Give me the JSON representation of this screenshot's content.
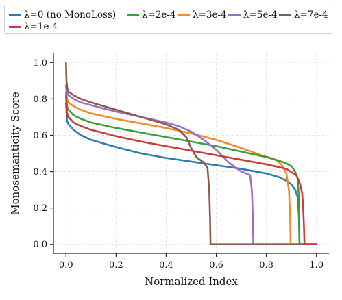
{
  "chart_data": {
    "type": "line",
    "title": "",
    "xlabel": "Normalized Index",
    "ylabel": "Monosemanticity Score",
    "xlim": [
      -0.05,
      1.05
    ],
    "ylim": [
      -0.05,
      1.05
    ],
    "xticks": [
      "0.0",
      "0.2",
      "0.4",
      "0.6",
      "0.8",
      "1.0"
    ],
    "yticks": [
      "0.0",
      "0.2",
      "0.4",
      "0.6",
      "0.8",
      "1.0"
    ],
    "grid": true,
    "legend_position": "top",
    "series": [
      {
        "name": "λ=0 (no MonoLoss)",
        "color": "#2e7bb4",
        "x": [
          0,
          0.004,
          0.01,
          0.03,
          0.06,
          0.1,
          0.2,
          0.3,
          0.4,
          0.5,
          0.6,
          0.7,
          0.8,
          0.85,
          0.88,
          0.9,
          0.915,
          0.925,
          0.93,
          0.932,
          1.0
        ],
        "y": [
          0.78,
          0.68,
          0.66,
          0.63,
          0.6,
          0.575,
          0.535,
          0.5,
          0.475,
          0.455,
          0.435,
          0.415,
          0.39,
          0.37,
          0.35,
          0.33,
          0.3,
          0.26,
          0.15,
          0.0,
          0.0
        ]
      },
      {
        "name": "λ=2e-4",
        "color": "#3a9e3a",
        "x": [
          0,
          0.004,
          0.01,
          0.03,
          0.06,
          0.1,
          0.2,
          0.3,
          0.4,
          0.5,
          0.6,
          0.7,
          0.8,
          0.85,
          0.88,
          0.9,
          0.915,
          0.925,
          0.93,
          0.932,
          1.0
        ],
        "y": [
          0.84,
          0.76,
          0.74,
          0.71,
          0.69,
          0.67,
          0.64,
          0.615,
          0.59,
          0.565,
          0.54,
          0.51,
          0.48,
          0.46,
          0.445,
          0.43,
          0.4,
          0.36,
          0.25,
          0.0,
          0.0
        ]
      },
      {
        "name": "λ=3e-4",
        "color": "#f08a2a",
        "x": [
          0,
          0.004,
          0.01,
          0.03,
          0.06,
          0.1,
          0.2,
          0.3,
          0.4,
          0.5,
          0.6,
          0.7,
          0.78,
          0.83,
          0.86,
          0.88,
          0.89,
          0.895,
          0.897,
          1.0
        ],
        "y": [
          0.87,
          0.8,
          0.78,
          0.76,
          0.74,
          0.72,
          0.69,
          0.665,
          0.64,
          0.61,
          0.575,
          0.53,
          0.49,
          0.47,
          0.44,
          0.39,
          0.3,
          0.15,
          0.0,
          0.0
        ]
      },
      {
        "name": "λ=5e-4",
        "color": "#9e6dc9",
        "x": [
          0,
          0.004,
          0.01,
          0.03,
          0.06,
          0.1,
          0.2,
          0.3,
          0.4,
          0.45,
          0.5,
          0.55,
          0.6,
          0.65,
          0.7,
          0.72,
          0.735,
          0.742,
          0.746,
          0.748,
          1.0
        ],
        "y": [
          0.88,
          0.84,
          0.82,
          0.8,
          0.78,
          0.765,
          0.73,
          0.7,
          0.67,
          0.65,
          0.62,
          0.575,
          0.52,
          0.45,
          0.4,
          0.39,
          0.38,
          0.3,
          0.15,
          0.0,
          0.0
        ]
      },
      {
        "name": "λ=7e-4",
        "color": "#8b5a4a",
        "x": [
          0,
          0.002,
          0.005,
          0.01,
          0.03,
          0.06,
          0.1,
          0.2,
          0.3,
          0.4,
          0.45,
          0.48,
          0.5,
          0.52,
          0.55,
          0.565,
          0.572,
          0.575,
          0.577,
          1.0
        ],
        "y": [
          1.0,
          0.9,
          0.86,
          0.84,
          0.82,
          0.8,
          0.78,
          0.74,
          0.7,
          0.66,
          0.63,
          0.59,
          0.53,
          0.48,
          0.45,
          0.42,
          0.3,
          0.15,
          0.0,
          0.0
        ]
      },
      {
        "name": "λ=1e-4",
        "color": "#cf3a32",
        "x": [
          0,
          0.004,
          0.01,
          0.03,
          0.06,
          0.1,
          0.2,
          0.3,
          0.4,
          0.5,
          0.6,
          0.7,
          0.8,
          0.88,
          0.92,
          0.935,
          0.943,
          0.947,
          0.95,
          0.952,
          1.0
        ],
        "y": [
          0.82,
          0.72,
          0.7,
          0.67,
          0.65,
          0.63,
          0.595,
          0.565,
          0.54,
          0.515,
          0.49,
          0.465,
          0.44,
          0.415,
          0.38,
          0.33,
          0.28,
          0.2,
          0.1,
          0.0,
          0.0
        ]
      }
    ]
  }
}
